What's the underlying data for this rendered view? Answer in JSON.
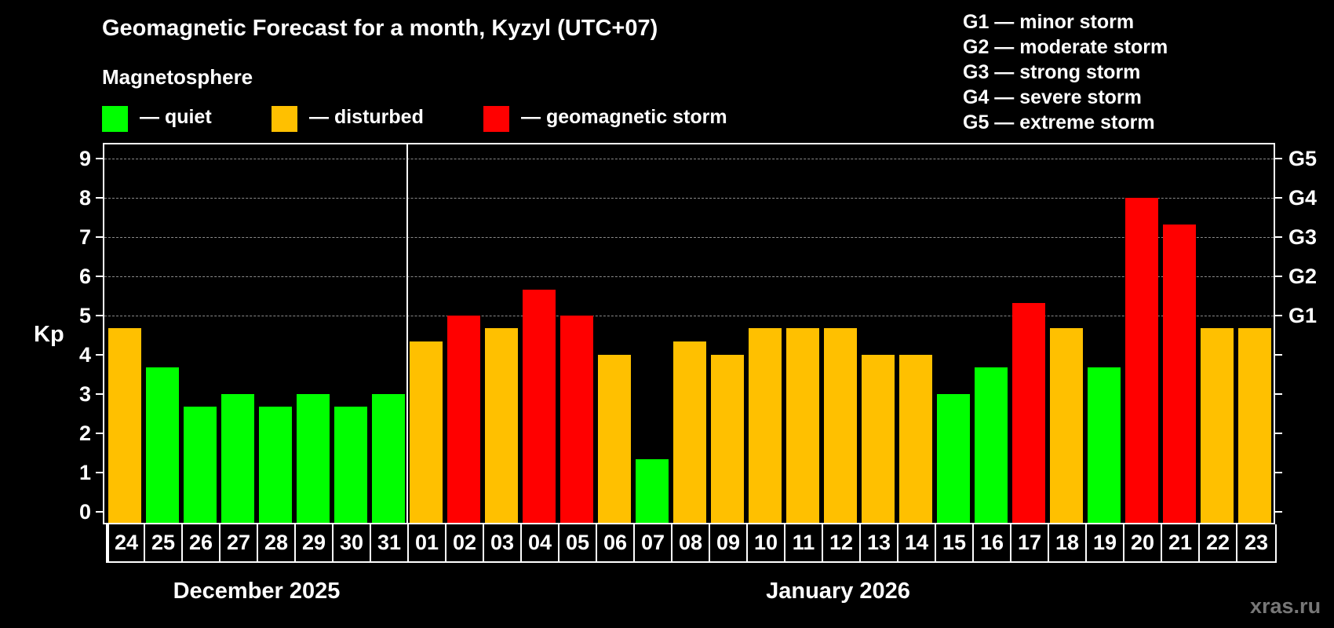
{
  "header": {
    "title": "Geomagnetic Forecast for a month, Kyzyl (UTC+07)",
    "subtitle": "Magnetosphere"
  },
  "legend": {
    "items": [
      {
        "label": "— quiet",
        "color": "#00ff00",
        "level": "quiet"
      },
      {
        "label": "— disturbed",
        "color": "#ffc000",
        "level": "disturbed"
      },
      {
        "label": "— geomagnetic storm",
        "color": "#ff0000",
        "level": "storm"
      }
    ]
  },
  "storm_scale": {
    "items": [
      {
        "label": "G1 — minor storm"
      },
      {
        "label": "G2 — moderate storm"
      },
      {
        "label": "G3 — strong storm"
      },
      {
        "label": "G4 — severe storm"
      },
      {
        "label": "G5 — extreme storm"
      }
    ]
  },
  "axis": {
    "y_label": "Kp",
    "y_ticks": [
      "0",
      "1",
      "2",
      "3",
      "4",
      "5",
      "6",
      "7",
      "8",
      "9"
    ],
    "g_ticks": [
      {
        "kp": 5,
        "label": "G1"
      },
      {
        "kp": 6,
        "label": "G2"
      },
      {
        "kp": 7,
        "label": "G3"
      },
      {
        "kp": 8,
        "label": "G4"
      },
      {
        "kp": 9,
        "label": "G5"
      }
    ]
  },
  "months": [
    {
      "label": "December 2025"
    },
    {
      "label": "January 2026"
    }
  ],
  "watermark": "xras.ru",
  "colors": {
    "quiet": "#00ff00",
    "disturbed": "#ffc000",
    "storm": "#ff0000",
    "grid": "#8a8a8a",
    "background": "#000000"
  },
  "chart_data": {
    "type": "bar",
    "title": "Geomagnetic Forecast for a month, Kyzyl (UTC+07)",
    "xlabel": "",
    "ylabel": "Kp",
    "ylim": [
      0,
      9
    ],
    "y2_labels": {
      "5": "G1",
      "6": "G2",
      "7": "G3",
      "8": "G4",
      "9": "G5"
    },
    "grid": true,
    "legend": [
      "quiet",
      "disturbed",
      "geomagnetic storm"
    ],
    "categories": [
      "24",
      "25",
      "26",
      "27",
      "28",
      "29",
      "30",
      "31",
      "01",
      "02",
      "03",
      "04",
      "05",
      "06",
      "07",
      "08",
      "09",
      "10",
      "11",
      "12",
      "13",
      "14",
      "15",
      "16",
      "17",
      "18",
      "19",
      "20",
      "21",
      "22",
      "23"
    ],
    "month_groups": [
      {
        "label": "December 2025",
        "days": [
          "24",
          "25",
          "26",
          "27",
          "28",
          "29",
          "30",
          "31"
        ]
      },
      {
        "label": "January 2026",
        "days": [
          "01",
          "02",
          "03",
          "04",
          "05",
          "06",
          "07",
          "08",
          "09",
          "10",
          "11",
          "12",
          "13",
          "14",
          "15",
          "16",
          "17",
          "18",
          "19",
          "20",
          "21",
          "22",
          "23"
        ]
      }
    ],
    "values": [
      4.67,
      3.67,
      2.67,
      3.0,
      2.67,
      3.0,
      2.67,
      3.0,
      4.33,
      5.0,
      4.67,
      5.67,
      5.0,
      4.0,
      1.33,
      4.33,
      4.0,
      4.67,
      4.67,
      4.67,
      4.0,
      4.0,
      3.0,
      3.67,
      5.33,
      4.67,
      3.67,
      8.0,
      7.33,
      4.67,
      4.67
    ],
    "levels": [
      "disturbed",
      "quiet",
      "quiet",
      "quiet",
      "quiet",
      "quiet",
      "quiet",
      "quiet",
      "disturbed",
      "storm",
      "disturbed",
      "storm",
      "storm",
      "disturbed",
      "quiet",
      "disturbed",
      "disturbed",
      "disturbed",
      "disturbed",
      "disturbed",
      "disturbed",
      "disturbed",
      "quiet",
      "quiet",
      "storm",
      "disturbed",
      "quiet",
      "storm",
      "storm",
      "disturbed",
      "disturbed"
    ]
  }
}
